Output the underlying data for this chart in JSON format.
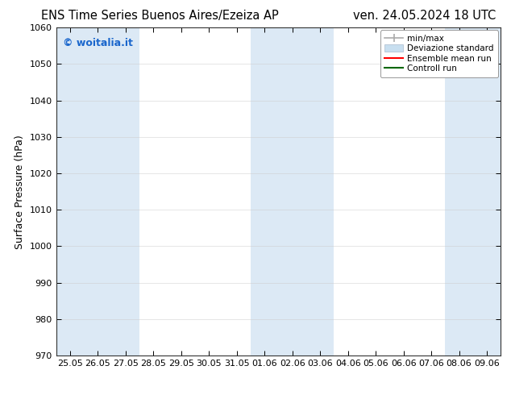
{
  "title_left": "ENS Time Series Buenos Aires/Ezeiza AP",
  "title_right": "ven. 24.05.2024 18 UTC",
  "ylabel": "Surface Pressure (hPa)",
  "ylim": [
    970,
    1060
  ],
  "yticks": [
    970,
    980,
    990,
    1000,
    1010,
    1020,
    1030,
    1040,
    1050,
    1060
  ],
  "xtick_labels": [
    "25.05",
    "26.05",
    "27.05",
    "28.05",
    "29.05",
    "30.05",
    "31.05",
    "01.06",
    "02.06",
    "03.06",
    "04.06",
    "05.06",
    "06.06",
    "07.06",
    "08.06",
    "09.06"
  ],
  "shaded_color": "#dce9f5",
  "background_color": "#ffffff",
  "watermark_text": "© woitalia.it",
  "watermark_color": "#1a66cc",
  "title_fontsize": 10.5,
  "tick_fontsize": 8,
  "ylabel_fontsize": 9,
  "legend_fontsize": 7.5,
  "watermark_fontsize": 9,
  "note": "Shaded bands every other day group: 25.05, 27.05, 01.06-02.06-03.06, 08.06-09.06"
}
